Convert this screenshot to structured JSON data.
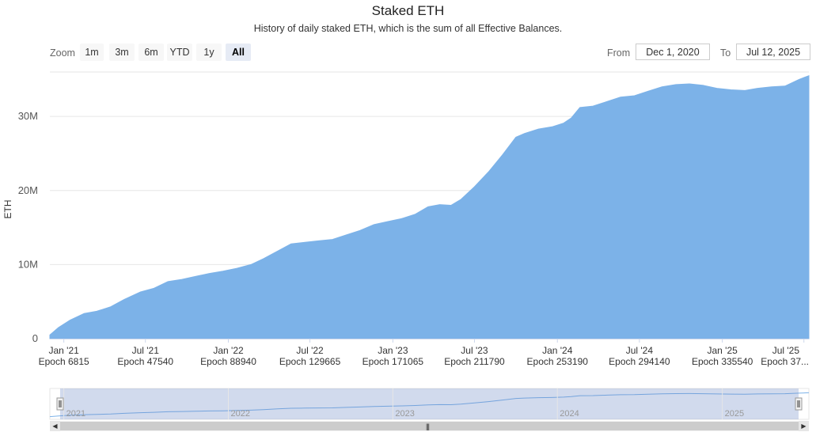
{
  "chart_data": {
    "type": "area",
    "title": "Staked ETH",
    "subtitle": "History of daily staked ETH, which is the sum of all Effective Balances.",
    "ylabel": "ETH",
    "ylim": [
      0,
      36000000
    ],
    "yticks": [
      {
        "value": 0,
        "label": "0"
      },
      {
        "value": 10000000,
        "label": "10M"
      },
      {
        "value": 20000000,
        "label": "20M"
      },
      {
        "value": 30000000,
        "label": "30M"
      }
    ],
    "xlim": [
      "2020-12-01",
      "2025-07-12"
    ],
    "xticks": [
      {
        "date": "2021-01-01",
        "label": "Jan '21",
        "epoch": "Epoch 6815"
      },
      {
        "date": "2021-07-01",
        "label": "Jul '21",
        "epoch": "Epoch 47540"
      },
      {
        "date": "2022-01-01",
        "label": "Jan '22",
        "epoch": "Epoch 88940"
      },
      {
        "date": "2022-07-01",
        "label": "Jul '22",
        "epoch": "Epoch 129665"
      },
      {
        "date": "2023-01-01",
        "label": "Jan '23",
        "epoch": "Epoch 171065"
      },
      {
        "date": "2023-07-01",
        "label": "Jul '23",
        "epoch": "Epoch 211790"
      },
      {
        "date": "2024-01-01",
        "label": "Jan '24",
        "epoch": "Epoch 253190"
      },
      {
        "date": "2024-07-01",
        "label": "Jul '24",
        "epoch": "Epoch 294140"
      },
      {
        "date": "2025-01-01",
        "label": "Jan '25",
        "epoch": "Epoch 335540"
      },
      {
        "date": "2025-07-01",
        "label": "Jul '25",
        "epoch": "Epoch 37..."
      }
    ],
    "series": [
      {
        "name": "Staked ETH",
        "color": "#7cb2e8",
        "points": [
          [
            "2020-12-01",
            0.5
          ],
          [
            "2020-12-20",
            1.5
          ],
          [
            "2021-01-15",
            2.5
          ],
          [
            "2021-02-15",
            3.4
          ],
          [
            "2021-03-15",
            3.7
          ],
          [
            "2021-04-15",
            4.3
          ],
          [
            "2021-05-15",
            5.3
          ],
          [
            "2021-06-20",
            6.3
          ],
          [
            "2021-07-20",
            6.8
          ],
          [
            "2021-08-20",
            7.7
          ],
          [
            "2021-09-20",
            8.0
          ],
          [
            "2021-10-20",
            8.4
          ],
          [
            "2021-11-20",
            8.8
          ],
          [
            "2021-12-20",
            9.1
          ],
          [
            "2022-01-20",
            9.5
          ],
          [
            "2022-02-20",
            10.0
          ],
          [
            "2022-03-20",
            10.8
          ],
          [
            "2022-04-20",
            11.8
          ],
          [
            "2022-05-20",
            12.8
          ],
          [
            "2022-06-20",
            13.0
          ],
          [
            "2022-07-20",
            13.2
          ],
          [
            "2022-08-20",
            13.4
          ],
          [
            "2022-09-20",
            14.0
          ],
          [
            "2022-10-20",
            14.6
          ],
          [
            "2022-11-20",
            15.4
          ],
          [
            "2022-12-20",
            15.8
          ],
          [
            "2023-01-20",
            16.2
          ],
          [
            "2023-02-20",
            16.8
          ],
          [
            "2023-03-20",
            17.8
          ],
          [
            "2023-04-15",
            18.1
          ],
          [
            "2023-05-10",
            18.0
          ],
          [
            "2023-06-01",
            18.8
          ],
          [
            "2023-07-01",
            20.5
          ],
          [
            "2023-08-01",
            22.5
          ],
          [
            "2023-09-01",
            24.8
          ],
          [
            "2023-10-01",
            27.2
          ],
          [
            "2023-10-20",
            27.7
          ],
          [
            "2023-11-20",
            28.3
          ],
          [
            "2023-12-20",
            28.6
          ],
          [
            "2024-01-15",
            29.1
          ],
          [
            "2024-02-01",
            29.8
          ],
          [
            "2024-02-20",
            31.2
          ],
          [
            "2024-03-20",
            31.4
          ],
          [
            "2024-04-20",
            32.0
          ],
          [
            "2024-05-20",
            32.6
          ],
          [
            "2024-06-20",
            32.8
          ],
          [
            "2024-07-20",
            33.4
          ],
          [
            "2024-08-20",
            34.0
          ],
          [
            "2024-09-20",
            34.3
          ],
          [
            "2024-10-20",
            34.4
          ],
          [
            "2024-11-20",
            34.2
          ],
          [
            "2024-12-20",
            33.8
          ],
          [
            "2025-01-20",
            33.6
          ],
          [
            "2025-02-20",
            33.5
          ],
          [
            "2025-03-20",
            33.8
          ],
          [
            "2025-04-20",
            34.0
          ],
          [
            "2025-05-20",
            34.1
          ],
          [
            "2025-06-20",
            35.0
          ],
          [
            "2025-07-12",
            35.5
          ]
        ],
        "unit_multiplier": 1000000
      }
    ],
    "navigator": {
      "labels": [
        "2021",
        "2022",
        "2023",
        "2024",
        "2025"
      ]
    },
    "legend": "none",
    "grid": true
  },
  "controls": {
    "zoom_label": "Zoom",
    "zoom_buttons": [
      "1m",
      "3m",
      "6m",
      "YTD",
      "1y",
      "All"
    ],
    "active_zoom": "All",
    "from_label": "From",
    "from_value": "Dec 1, 2020",
    "to_label": "To",
    "to_value": "Jul 12, 2025"
  }
}
